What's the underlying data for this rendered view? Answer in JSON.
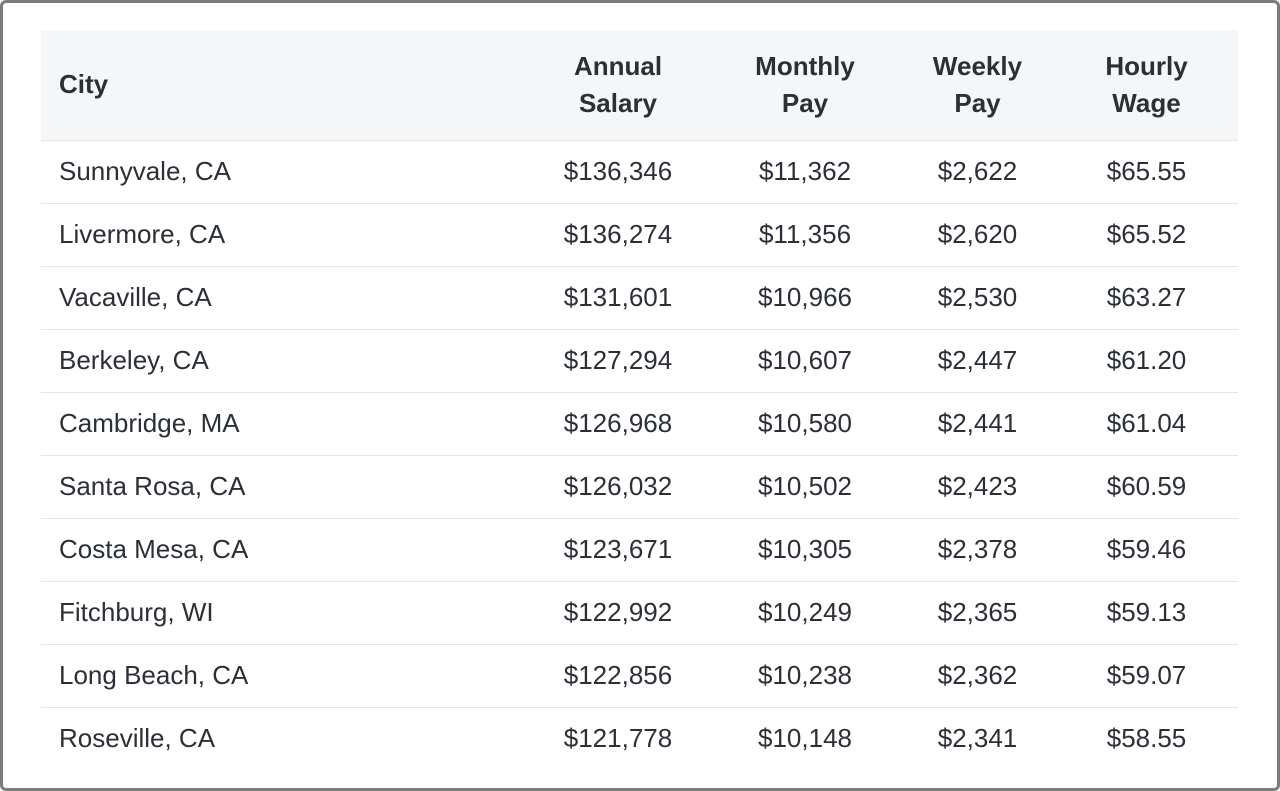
{
  "table": {
    "headers": {
      "city": "City",
      "annual_line1": "Annual",
      "annual_line2": "Salary",
      "monthly_line1": "Monthly",
      "monthly_line2": "Pay",
      "weekly_line1": "Weekly",
      "weekly_line2": "Pay",
      "hourly_line1": "Hourly",
      "hourly_line2": "Wage"
    },
    "rows": [
      {
        "city": "Sunnyvale, CA",
        "annual": "$136,346",
        "monthly": "$11,362",
        "weekly": "$2,622",
        "hourly": "$65.55"
      },
      {
        "city": "Livermore, CA",
        "annual": "$136,274",
        "monthly": "$11,356",
        "weekly": "$2,620",
        "hourly": "$65.52"
      },
      {
        "city": "Vacaville, CA",
        "annual": "$131,601",
        "monthly": "$10,966",
        "weekly": "$2,530",
        "hourly": "$63.27"
      },
      {
        "city": "Berkeley, CA",
        "annual": "$127,294",
        "monthly": "$10,607",
        "weekly": "$2,447",
        "hourly": "$61.20"
      },
      {
        "city": "Cambridge, MA",
        "annual": "$126,968",
        "monthly": "$10,580",
        "weekly": "$2,441",
        "hourly": "$61.04"
      },
      {
        "city": "Santa Rosa, CA",
        "annual": "$126,032",
        "monthly": "$10,502",
        "weekly": "$2,423",
        "hourly": "$60.59"
      },
      {
        "city": "Costa Mesa, CA",
        "annual": "$123,671",
        "monthly": "$10,305",
        "weekly": "$2,378",
        "hourly": "$59.46"
      },
      {
        "city": "Fitchburg, WI",
        "annual": "$122,992",
        "monthly": "$10,249",
        "weekly": "$2,365",
        "hourly": "$59.13"
      },
      {
        "city": "Long Beach, CA",
        "annual": "$122,856",
        "monthly": "$10,238",
        "weekly": "$2,362",
        "hourly": "$59.07"
      },
      {
        "city": "Roseville, CA",
        "annual": "$121,778",
        "monthly": "$10,148",
        "weekly": "$2,341",
        "hourly": "$58.55"
      }
    ]
  }
}
